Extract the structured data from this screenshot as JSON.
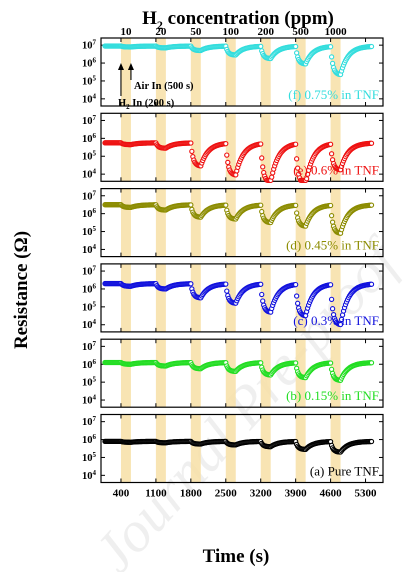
{
  "title_main": "H",
  "title_sub": "2",
  "title_rest": " concentration (ppm)",
  "ylabel": "Resistance (Ω)",
  "xlabel": "Time (s)",
  "watermark": "Journal Pre-proof",
  "annotations": {
    "air_in": "Air In (500 s)",
    "h2_in_main": "H",
    "h2_in_sub": "2",
    "h2_in_rest": " In (200 s)"
  },
  "chart_data": {
    "type": "line",
    "x_ticks": [
      400,
      1100,
      1800,
      2500,
      3200,
      3900,
      4600,
      5300
    ],
    "xlim": [
      0,
      5650
    ],
    "ylim_log10": [
      3.6,
      7.4
    ],
    "y_ticks": [
      "10⁴",
      "10⁵",
      "10⁶",
      "10⁷"
    ],
    "y_tick_values": [
      10000,
      100000,
      1000000,
      10000000
    ],
    "h2_concentrations": [
      "10",
      "20",
      "50",
      "100",
      "200",
      "500",
      "1000"
    ],
    "h2_pulse_starts": [
      400,
      1100,
      1800,
      2500,
      3200,
      3900,
      4600
    ],
    "h2_pulse_duration_s": 200,
    "panels": [
      {
        "name": "(f) 0.75% in TNF",
        "color": "#33dddd",
        "base_log10": 6.95,
        "drops_log10": [
          0.05,
          0.1,
          0.25,
          0.5,
          0.7,
          1.0,
          1.6
        ]
      },
      {
        "name": "(e) 0.6% in TNF",
        "color": "#ee1111",
        "base_log10": 5.75,
        "drops_log10": [
          0.1,
          0.3,
          1.3,
          1.8,
          2.2,
          2.3,
          1.5
        ]
      },
      {
        "name": "(d) 0.45% in TNF",
        "color": "#8c8c00",
        "base_log10": 6.5,
        "drops_log10": [
          0.15,
          0.3,
          0.7,
          0.8,
          1.0,
          1.2,
          1.6
        ]
      },
      {
        "name": "(c) 0.3% in TNF",
        "color": "#1111dd",
        "base_log10": 6.3,
        "drops_log10": [
          0.15,
          0.3,
          0.8,
          1.1,
          1.6,
          1.8,
          2.3
        ]
      },
      {
        "name": "(b) 0.15% in TNF",
        "color": "#22dd22",
        "base_log10": 6.1,
        "drops_log10": [
          0.1,
          0.2,
          0.35,
          0.5,
          0.7,
          0.85,
          1.0
        ]
      },
      {
        "name": "(a) Pure TNF",
        "color": "#000000",
        "base_log10": 5.9,
        "drops_log10": [
          0.05,
          0.08,
          0.15,
          0.2,
          0.3,
          0.45,
          0.6
        ]
      }
    ]
  }
}
